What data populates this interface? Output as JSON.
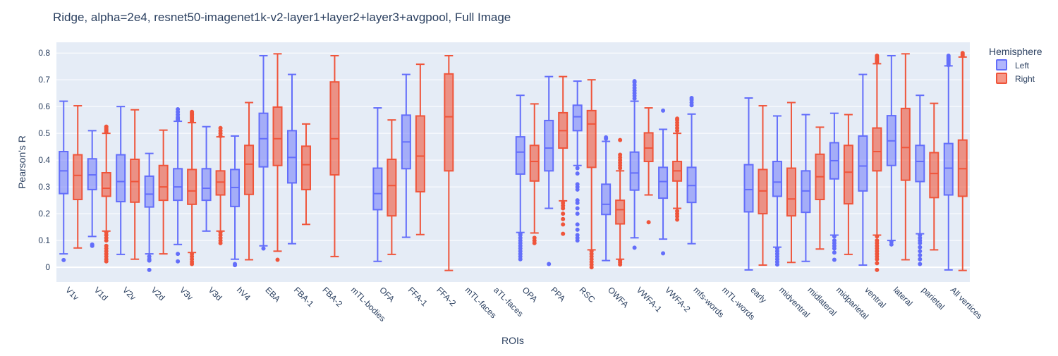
{
  "chart_data": {
    "type": "box",
    "title": "Ridge, alpha=2e4, resnet50-imagenet1k-v2-layer1+layer2+layer3+avgpool, Full Image",
    "xlabel": "ROIs",
    "ylabel": "Pearson's R",
    "ylim": [
      -0.055,
      0.84
    ],
    "yticks": [
      0,
      0.1,
      0.2,
      0.3,
      0.4,
      0.5,
      0.6,
      0.7,
      0.8
    ],
    "ytick_labels": [
      "0",
      "0.1",
      "0.2",
      "0.3",
      "0.4",
      "0.5",
      "0.6",
      "0.7",
      "0.8"
    ],
    "grid": true,
    "legend": {
      "title": "Hemisphere",
      "position": "top-right"
    },
    "categories": [
      "V1v",
      "V1d",
      "V2v",
      "V2d",
      "V3v",
      "V3d",
      "hV4",
      "EBA",
      "FBA-1",
      "FBA-2",
      "mTL-bodies",
      "OFA",
      "FFA-1",
      "FFA-2",
      "mTL-faces",
      "aTL-faces",
      "OPA",
      "PPA",
      "RSC",
      "OWFA",
      "VWFA-1",
      "VWFA-2",
      "mfs-words",
      "mTL-words",
      "early",
      "midventral",
      "midlateral",
      "midparietal",
      "ventral",
      "lateral",
      "parietal",
      "All vertices"
    ],
    "series": [
      {
        "name": "Left",
        "color": "#636efa",
        "fill": "rgba(99,110,250,0.5)",
        "boxes": [
          {
            "lower": 0.05,
            "q1": 0.275,
            "median": 0.36,
            "q3": 0.432,
            "upper": 0.62,
            "outliers": [
              0.027
            ]
          },
          {
            "lower": 0.115,
            "q1": 0.29,
            "median": 0.345,
            "q3": 0.405,
            "upper": 0.51,
            "outliers": [
              0.08,
              0.085
            ]
          },
          {
            "lower": 0.048,
            "q1": 0.245,
            "median": 0.32,
            "q3": 0.42,
            "upper": 0.6,
            "outliers": []
          },
          {
            "lower": 0.05,
            "q1": 0.225,
            "median": 0.273,
            "q3": 0.34,
            "upper": 0.425,
            "outliers": [
              0.04,
              0.03,
              0.025,
              -0.01
            ]
          },
          {
            "lower": 0.085,
            "q1": 0.25,
            "median": 0.3,
            "q3": 0.368,
            "upper": 0.545,
            "outliers": [
              0.55,
              0.555,
              0.56,
              0.57,
              0.58,
              0.59,
              0.05,
              0.022
            ]
          },
          {
            "lower": 0.135,
            "q1": 0.25,
            "median": 0.295,
            "q3": 0.368,
            "upper": 0.525,
            "outliers": []
          },
          {
            "lower": 0.03,
            "q1": 0.227,
            "median": 0.298,
            "q3": 0.365,
            "upper": 0.49,
            "outliers": [
              0.012,
              0.008
            ]
          },
          {
            "lower": 0.08,
            "q1": 0.375,
            "median": 0.48,
            "q3": 0.575,
            "upper": 0.79,
            "outliers": [
              0.07
            ]
          },
          {
            "lower": 0.088,
            "q1": 0.315,
            "median": 0.41,
            "q3": 0.51,
            "upper": 0.72,
            "outliers": []
          },
          null,
          null,
          {
            "lower": 0.022,
            "q1": 0.215,
            "median": 0.275,
            "q3": 0.37,
            "upper": 0.595,
            "outliers": []
          },
          {
            "lower": 0.112,
            "q1": 0.368,
            "median": 0.468,
            "q3": 0.568,
            "upper": 0.72,
            "outliers": []
          },
          null,
          null,
          null,
          {
            "lower": 0.13,
            "q1": 0.348,
            "median": 0.43,
            "q3": 0.487,
            "upper": 0.642,
            "outliers": [
              0.125,
              0.12,
              0.11,
              0.1,
              0.09,
              0.08,
              0.07,
              0.06,
              0.05,
              0.04,
              0.03
            ]
          },
          {
            "lower": 0.22,
            "q1": 0.36,
            "median": 0.445,
            "q3": 0.548,
            "upper": 0.712,
            "outliers": [
              0.012
            ]
          },
          {
            "lower": 0.38,
            "q1": 0.51,
            "median": 0.562,
            "q3": 0.605,
            "upper": 0.695,
            "outliers": [
              0.37,
              0.35,
              0.31,
              0.3,
              0.29,
              0.25,
              0.24,
              0.22,
              0.2,
              0.16,
              0.14,
              0.12,
              0.11,
              0.1
            ]
          },
          {
            "lower": 0.025,
            "q1": 0.197,
            "median": 0.235,
            "q3": 0.31,
            "upper": 0.47,
            "outliers": [
              0.48,
              0.485
            ]
          },
          {
            "lower": 0.11,
            "q1": 0.288,
            "median": 0.352,
            "q3": 0.43,
            "upper": 0.62,
            "outliers": [
              0.63,
              0.64,
              0.65,
              0.66,
              0.67,
              0.68,
              0.69,
              0.695,
              0.073
            ]
          },
          {
            "lower": 0.105,
            "q1": 0.258,
            "median": 0.32,
            "q3": 0.373,
            "upper": 0.515,
            "outliers": [
              0.585,
              0.052
            ]
          },
          {
            "lower": 0.088,
            "q1": 0.242,
            "median": 0.305,
            "q3": 0.373,
            "upper": 0.572,
            "outliers": [
              0.605,
              0.615,
              0.625,
              0.632
            ]
          },
          null,
          {
            "lower": -0.01,
            "q1": 0.207,
            "median": 0.29,
            "q3": 0.383,
            "upper": 0.632,
            "outliers": []
          },
          {
            "lower": 0.075,
            "q1": 0.265,
            "median": 0.318,
            "q3": 0.395,
            "upper": 0.565,
            "outliers": [
              0.07,
              0.06,
              0.05,
              0.04,
              0.03,
              0.02,
              0.01
            ]
          },
          {
            "lower": 0.022,
            "q1": 0.205,
            "median": 0.285,
            "q3": 0.36,
            "upper": 0.57,
            "outliers": []
          },
          {
            "lower": 0.12,
            "q1": 0.33,
            "median": 0.398,
            "q3": 0.465,
            "upper": 0.575,
            "outliers": [
              0.115,
              0.1,
              0.09,
              0.08,
              0.07,
              0.055,
              0.028
            ]
          },
          {
            "lower": 0.008,
            "q1": 0.285,
            "median": 0.378,
            "q3": 0.49,
            "upper": 0.72,
            "outliers": []
          },
          {
            "lower": 0.1,
            "q1": 0.38,
            "median": 0.472,
            "q3": 0.566,
            "upper": 0.79,
            "outliers": [
              0.095,
              0.085
            ]
          },
          {
            "lower": 0.125,
            "q1": 0.32,
            "median": 0.395,
            "q3": 0.455,
            "upper": 0.642,
            "outliers": [
              0.12,
              0.11,
              0.1,
              0.09,
              0.075,
              0.06,
              0.045,
              0.03,
              0.012
            ]
          },
          {
            "lower": -0.01,
            "q1": 0.27,
            "median": 0.37,
            "q3": 0.462,
            "upper": 0.752,
            "outliers": [
              0.755,
              0.76,
              0.765,
              0.77,
              0.775,
              0.78,
              0.785,
              0.79
            ]
          }
        ]
      },
      {
        "name": "Right",
        "color": "#ef553b",
        "fill": "rgba(239,85,59,0.6)",
        "boxes": [
          {
            "lower": 0.072,
            "q1": 0.253,
            "median": 0.343,
            "q3": 0.42,
            "upper": 0.603,
            "outliers": []
          },
          {
            "lower": 0.135,
            "q1": 0.265,
            "median": 0.295,
            "q3": 0.353,
            "upper": 0.5,
            "outliers": [
              0.505,
              0.51,
              0.515,
              0.52,
              0.525,
              0.13,
              0.12,
              0.11,
              0.1,
              0.08,
              0.07,
              0.06,
              0.05,
              0.04,
              0.03,
              0.022
            ]
          },
          {
            "lower": 0.03,
            "q1": 0.243,
            "median": 0.32,
            "q3": 0.403,
            "upper": 0.588,
            "outliers": []
          },
          {
            "lower": 0.05,
            "q1": 0.25,
            "median": 0.3,
            "q3": 0.38,
            "upper": 0.512,
            "outliers": []
          },
          {
            "lower": 0.055,
            "q1": 0.235,
            "median": 0.285,
            "q3": 0.365,
            "upper": 0.54,
            "outliers": [
              0.545,
              0.55,
              0.555,
              0.56,
              0.565,
              0.57,
              0.575,
              0.58,
              0.05,
              0.04,
              0.03,
              0.02,
              0.012
            ]
          },
          {
            "lower": 0.135,
            "q1": 0.27,
            "median": 0.318,
            "q3": 0.36,
            "upper": 0.487,
            "outliers": [
              0.49,
              0.5,
              0.51,
              0.52,
              0.13,
              0.12,
              0.11,
              0.1,
              0.09
            ]
          },
          {
            "lower": 0.028,
            "q1": 0.272,
            "median": 0.385,
            "q3": 0.455,
            "upper": 0.615,
            "outliers": []
          },
          {
            "lower": 0.06,
            "q1": 0.38,
            "median": 0.48,
            "q3": 0.598,
            "upper": 0.797,
            "outliers": [
              0.028
            ]
          },
          {
            "lower": 0.16,
            "q1": 0.29,
            "median": 0.383,
            "q3": 0.452,
            "upper": 0.535,
            "outliers": []
          },
          {
            "lower": 0.04,
            "q1": 0.345,
            "median": 0.48,
            "q3": 0.692,
            "upper": 0.79,
            "outliers": []
          },
          null,
          {
            "lower": 0.048,
            "q1": 0.192,
            "median": 0.305,
            "q3": 0.403,
            "upper": 0.55,
            "outliers": []
          },
          {
            "lower": 0.122,
            "q1": 0.282,
            "median": 0.415,
            "q3": 0.565,
            "upper": 0.758,
            "outliers": []
          },
          {
            "lower": -0.012,
            "q1": 0.36,
            "median": 0.562,
            "q3": 0.722,
            "upper": 0.79,
            "outliers": []
          },
          null,
          null,
          {
            "lower": 0.128,
            "q1": 0.322,
            "median": 0.395,
            "q3": 0.455,
            "upper": 0.61,
            "outliers": [
              0.11,
              0.1,
              0.09
            ]
          },
          {
            "lower": 0.248,
            "q1": 0.445,
            "median": 0.51,
            "q3": 0.577,
            "upper": 0.712,
            "outliers": [
              0.24,
              0.23,
              0.22,
              0.2,
              0.18,
              0.16,
              0.125
            ]
          },
          {
            "lower": 0.065,
            "q1": 0.373,
            "median": 0.535,
            "q3": 0.585,
            "upper": 0.7,
            "outliers": [
              0.06,
              0.05,
              0.04,
              0.03,
              0.02,
              0.01,
              0.0
            ]
          },
          {
            "lower": 0.03,
            "q1": 0.162,
            "median": 0.215,
            "q3": 0.25,
            "upper": 0.36,
            "outliers": [
              0.37,
              0.38,
              0.39,
              0.4,
              0.41,
              0.42,
              0.475,
              0.025,
              0.018,
              0.01
            ]
          },
          {
            "lower": 0.27,
            "q1": 0.395,
            "median": 0.445,
            "q3": 0.502,
            "upper": 0.595,
            "outliers": [
              0.168
            ]
          },
          {
            "lower": 0.22,
            "q1": 0.322,
            "median": 0.36,
            "q3": 0.395,
            "upper": 0.5,
            "outliers": [
              0.51,
              0.52,
              0.53,
              0.54,
              0.55,
              0.555,
              0.21,
              0.2,
              0.19,
              0.178
            ]
          },
          null,
          null,
          {
            "lower": 0.008,
            "q1": 0.2,
            "median": 0.285,
            "q3": 0.365,
            "upper": 0.603,
            "outliers": []
          },
          {
            "lower": 0.018,
            "q1": 0.192,
            "median": 0.255,
            "q3": 0.37,
            "upper": 0.615,
            "outliers": []
          },
          {
            "lower": 0.068,
            "q1": 0.253,
            "median": 0.338,
            "q3": 0.422,
            "upper": 0.523,
            "outliers": []
          },
          {
            "lower": 0.048,
            "q1": 0.237,
            "median": 0.355,
            "q3": 0.455,
            "upper": 0.57,
            "outliers": []
          },
          {
            "lower": 0.12,
            "q1": 0.36,
            "median": 0.432,
            "q3": 0.52,
            "upper": 0.76,
            "outliers": [
              0.765,
              0.77,
              0.775,
              0.78,
              0.785,
              0.79,
              0.115,
              0.1,
              0.09,
              0.08,
              0.07,
              0.06,
              0.05,
              0.04,
              0.03,
              0.015,
              -0.01
            ]
          },
          {
            "lower": 0.028,
            "q1": 0.325,
            "median": 0.447,
            "q3": 0.593,
            "upper": 0.797,
            "outliers": []
          },
          {
            "lower": 0.065,
            "q1": 0.26,
            "median": 0.35,
            "q3": 0.428,
            "upper": 0.612,
            "outliers": []
          },
          {
            "lower": -0.012,
            "q1": 0.265,
            "median": 0.368,
            "q3": 0.475,
            "upper": 0.785,
            "outliers": [
              0.79,
              0.795,
              0.8
            ]
          }
        ]
      }
    ]
  }
}
